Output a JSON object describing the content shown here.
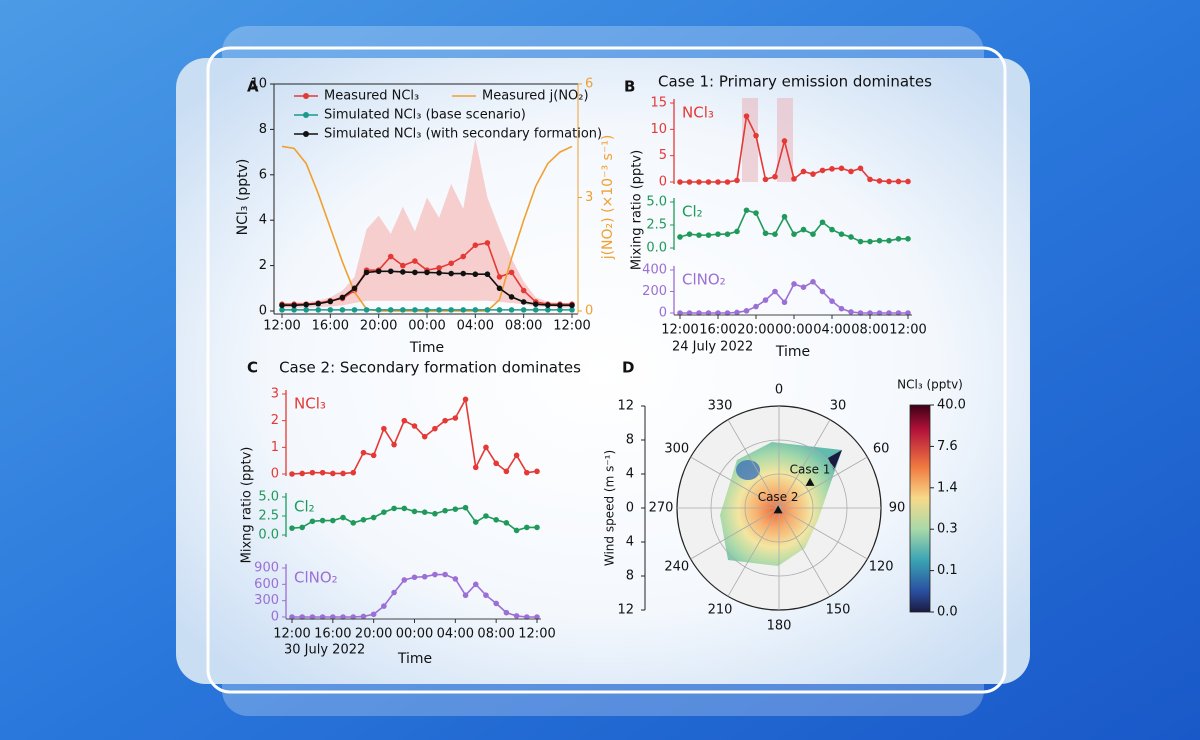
{
  "chart_data": [
    {
      "type": "line",
      "label": "A",
      "xlabel": "Time",
      "ylabel": "NCl₃ (pptv)",
      "y2label": "j(NO₂) (×10⁻³ s⁻¹)",
      "categories": [
        "12:00",
        null,
        null,
        null,
        "16:00",
        null,
        null,
        null,
        "20:00",
        null,
        null,
        null,
        "00:00",
        null,
        null,
        null,
        "04:00",
        null,
        null,
        null,
        "08:00",
        null,
        null,
        null,
        "12:00"
      ],
      "ylim": [
        0,
        10
      ],
      "yticks": [
        0,
        2,
        4,
        6,
        8,
        10
      ],
      "y2lim": [
        0,
        6
      ],
      "y2ticks": [
        0,
        3,
        6
      ],
      "range": {
        "color": "#f6c3c2",
        "lower": [
          0.15,
          0.15,
          0.15,
          0.18,
          0.2,
          0.25,
          0.35,
          0.45,
          0.45,
          0.45,
          0.45,
          0.45,
          0.45,
          0.45,
          0.45,
          0.45,
          0.45,
          0.45,
          0.4,
          0.35,
          0.3,
          0.2,
          0.18,
          0.15,
          0.15
        ],
        "upper": [
          0.3,
          0.35,
          0.4,
          0.45,
          0.6,
          0.9,
          1.5,
          3.6,
          4.2,
          3.4,
          4.6,
          3.5,
          5.0,
          4.1,
          5.6,
          4.5,
          7.6,
          5.0,
          3.6,
          2.3,
          1.3,
          0.6,
          0.4,
          0.35,
          0.3
        ]
      },
      "series": [
        {
          "name": "Measured NCl₃",
          "color": "#e53935",
          "markers": true,
          "values": [
            0.3,
            0.3,
            0.3,
            0.35,
            0.45,
            0.55,
            0.9,
            1.8,
            1.8,
            2.4,
            2.0,
            2.2,
            1.8,
            1.9,
            2.1,
            2.4,
            2.9,
            3.0,
            1.5,
            1.7,
            0.9,
            0.4,
            0.3,
            0.3,
            0.3
          ]
        },
        {
          "name": "Measured j(NO₂)",
          "color": "#f0a030",
          "markers": false,
          "axis": "y2",
          "values": [
            4.35,
            4.3,
            3.9,
            3.1,
            2.2,
            1.3,
            0.5,
            0.05,
            0,
            0,
            0,
            0,
            0,
            0,
            0,
            0,
            0,
            0,
            0.3,
            1.4,
            2.4,
            3.3,
            3.9,
            4.2,
            4.35
          ]
        },
        {
          "name": "Simulated NCl₃ (base scenario)",
          "color": "#1a9a8a",
          "markers": true,
          "values": [
            0.05,
            0.05,
            0.05,
            0.05,
            0.05,
            0.05,
            0.05,
            0.05,
            0.05,
            0.05,
            0.05,
            0.05,
            0.05,
            0.05,
            0.05,
            0.05,
            0.05,
            0.05,
            0.05,
            0.05,
            0.05,
            0.05,
            0.05,
            0.05,
            0.05
          ]
        },
        {
          "name": "Simulated NCl₃ (with secondary formation)",
          "color": "#111111",
          "markers": true,
          "values": [
            0.25,
            0.25,
            0.28,
            0.32,
            0.42,
            0.6,
            1.0,
            1.7,
            1.75,
            1.75,
            1.72,
            1.7,
            1.7,
            1.68,
            1.65,
            1.65,
            1.62,
            1.62,
            1.0,
            0.62,
            0.4,
            0.3,
            0.26,
            0.25,
            0.25
          ]
        }
      ]
    },
    {
      "type": "stacked-lines",
      "label": "B",
      "title": "Case 1:  Primary emission dominates",
      "ylabel": "Mixing ratio (pptv)",
      "xlabel": "Time",
      "date": "24 July 2022",
      "categories": [
        "12:00",
        null,
        null,
        null,
        "16:00",
        null,
        null,
        null,
        "20:00",
        null,
        null,
        null,
        "00:00",
        null,
        null,
        null,
        "04:00",
        null,
        null,
        null,
        "08:00",
        null,
        null,
        null,
        "12:00"
      ],
      "series": [
        {
          "name": "NCl₃",
          "color": "#e53935",
          "ylim": [
            0,
            15
          ],
          "yticks": [
            0,
            5,
            10,
            15
          ],
          "values": [
            0,
            0,
            0,
            0,
            0,
            0,
            0.3,
            12.5,
            8.8,
            0.5,
            1.0,
            7.8,
            0.6,
            2.0,
            1.5,
            2.2,
            2.5,
            2.6,
            2.0,
            2.6,
            0.5,
            0.2,
            0.1,
            0.1,
            0.1
          ]
        },
        {
          "name": "Cl₂",
          "color": "#1f9a5a",
          "ylim": [
            0,
            5
          ],
          "yticks": [
            {
              "value": 0,
              "label": "0.0"
            },
            2.5,
            {
              "value": 5,
              "label": "5.0"
            }
          ],
          "values": [
            1.2,
            1.5,
            1.4,
            1.4,
            1.5,
            1.5,
            1.8,
            4.1,
            3.8,
            1.6,
            1.5,
            3.4,
            1.5,
            2.0,
            1.5,
            2.8,
            2.0,
            1.5,
            1.2,
            0.7,
            0.7,
            0.8,
            0.8,
            1.0,
            1.0
          ]
        },
        {
          "name": "ClNO₂",
          "color": "#9b6fd6",
          "ylim": [
            0,
            400
          ],
          "yticks": [
            0,
            200,
            400
          ],
          "values": [
            0,
            0,
            0,
            0,
            0,
            0,
            5,
            20,
            60,
            120,
            200,
            100,
            270,
            240,
            290,
            200,
            110,
            40,
            10,
            0,
            0,
            0,
            0,
            0,
            0
          ]
        }
      ]
    },
    {
      "type": "stacked-lines",
      "label": "C",
      "title": "Case 2: Secondary formation dominates",
      "ylabel": "Mixng ratio (pptv)",
      "xlabel": "Time",
      "date": "30 July 2022",
      "categories": [
        "12:00",
        null,
        null,
        null,
        "16:00",
        null,
        null,
        null,
        "20:00",
        null,
        null,
        null,
        "00:00",
        null,
        null,
        null,
        "04:00",
        null,
        null,
        null,
        "08:00",
        null,
        null,
        null,
        "12:00"
      ],
      "series": [
        {
          "name": "NCl₃",
          "color": "#e53935",
          "ylim": [
            0,
            3
          ],
          "yticks": [
            0,
            1,
            2,
            3
          ],
          "values": [
            0,
            0.02,
            0.05,
            0.05,
            0.02,
            0.02,
            0.05,
            0.8,
            0.7,
            1.7,
            1.1,
            2.0,
            1.8,
            1.4,
            1.7,
            2.0,
            2.1,
            2.8,
            0.25,
            1.0,
            0.4,
            0.1,
            0.7,
            0.05,
            0.1
          ]
        },
        {
          "name": "Cl₂",
          "color": "#1f9a5a",
          "ylim": [
            0,
            5
          ],
          "yticks": [
            {
              "value": 0,
              "label": "0.0"
            },
            2.5,
            {
              "value": 5,
              "label": "5.0"
            }
          ],
          "values": [
            0.9,
            1.0,
            1.8,
            1.9,
            1.9,
            2.3,
            1.6,
            2.0,
            2.3,
            3.0,
            3.5,
            3.5,
            3.1,
            3.0,
            2.8,
            3.2,
            3.4,
            3.6,
            1.7,
            2.5,
            2.0,
            1.6,
            0.6,
            1.0,
            1.0
          ]
        },
        {
          "name": "ClNO₂",
          "color": "#9b6fd6",
          "ylim": [
            0,
            900
          ],
          "yticks": [
            0,
            300,
            600,
            900
          ],
          "values": [
            0,
            0,
            0,
            0,
            0,
            0,
            0,
            10,
            50,
            200,
            450,
            680,
            730,
            740,
            780,
            780,
            700,
            400,
            600,
            400,
            250,
            80,
            20,
            0,
            0
          ]
        }
      ]
    },
    {
      "type": "polar",
      "label": "D",
      "rlabel": "Wind speed (m s⁻¹)",
      "thetaticks": [
        0,
        30,
        60,
        90,
        120,
        150,
        180,
        210,
        240,
        270,
        300,
        330
      ],
      "rlim": [
        0,
        12
      ],
      "rticks": [
        0,
        4,
        8,
        12
      ],
      "colorbar": {
        "label": "NCl₃ (pptv)",
        "ticks": [
          {
            "value": 40,
            "label": "40.0"
          },
          7.6,
          1.4,
          0.3,
          0.1,
          {
            "value": 0,
            "label": "0.0"
          }
        ]
      },
      "points": [
        {
          "label": "Case 1",
          "direction": 51,
          "speed": 4.7
        },
        {
          "label": "Case 2",
          "direction": 200,
          "speed": 0.3
        }
      ]
    }
  ]
}
